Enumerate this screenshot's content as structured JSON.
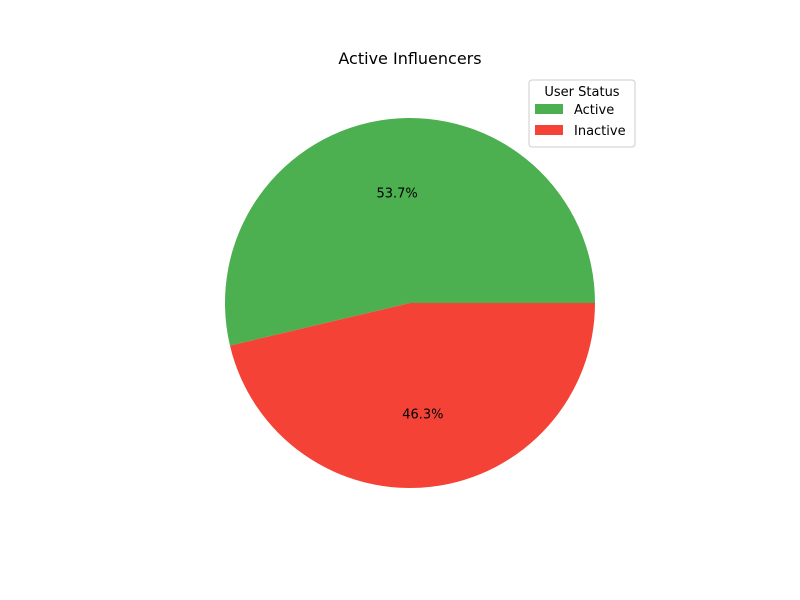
{
  "chart_data": {
    "type": "pie",
    "title": "Active Influencers",
    "categories": [
      "Active",
      "Inactive"
    ],
    "values": [
      53.7,
      46.3
    ],
    "labels": [
      "53.7%",
      "46.3%"
    ],
    "colors": [
      "#4caf50",
      "#f44336"
    ],
    "start_angle_deg": 0,
    "direction": "counterclockwise",
    "legend": {
      "title": "User Status",
      "placement": "top-right",
      "entries": [
        "Active",
        "Inactive"
      ]
    }
  }
}
